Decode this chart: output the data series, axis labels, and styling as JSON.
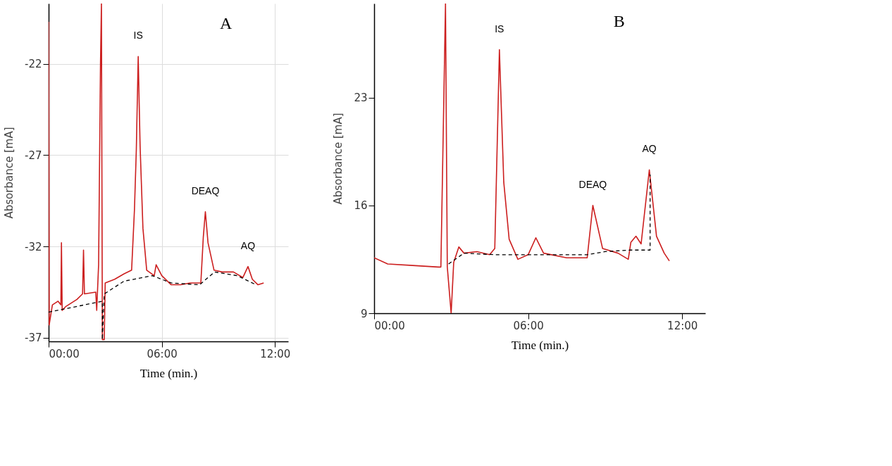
{
  "chart_data": [
    {
      "type": "line",
      "xlabel": "Time (min.)",
      "ylabel": "Absorbance [mA]",
      "xlim": [
        0,
        12.7
      ],
      "ylim": [
        -37.2,
        -18.7
      ],
      "xticks": [
        {
          "value": 0,
          "label": "00:00"
        },
        {
          "value": 6,
          "label": "06:00"
        },
        {
          "value": 12,
          "label": "12:00"
        }
      ],
      "yticks": [
        -37,
        -32,
        -27,
        -22
      ],
      "grid": true,
      "series": [
        {
          "color": "#cc1f1f",
          "line_style": "solid",
          "x": [
            0,
            0.03,
            0.2,
            0.5,
            0.65,
            0.68,
            0.72,
            0.9,
            1.5,
            1.8,
            1.85,
            1.9,
            2.5,
            2.55,
            2.65,
            2.75,
            2.8,
            2.85,
            2.95,
            3.0,
            3.5,
            4.0,
            4.4,
            4.55,
            4.65,
            4.75,
            4.85,
            5.0,
            5.2,
            5.6,
            5.7,
            6.0,
            6.5,
            7.0,
            7.5,
            8.07,
            8.2,
            8.31,
            8.45,
            8.77,
            9.2,
            9.8,
            10.3,
            10.57,
            10.8,
            11.1,
            11.4
          ],
          "values": [
            -19.7,
            -36.3,
            -35.2,
            -35.0,
            -35.2,
            -31.8,
            -35.5,
            -35.3,
            -34.9,
            -34.6,
            -32.2,
            -34.6,
            -34.5,
            -35.5,
            -33.0,
            -22.0,
            -18.7,
            -37.1,
            -37.1,
            -34.0,
            -33.8,
            -33.5,
            -33.3,
            -30.0,
            -26.7,
            -21.6,
            -26.5,
            -31.0,
            -33.3,
            -33.6,
            -33.0,
            -33.6,
            -34.1,
            -34.1,
            -34.0,
            -34.0,
            -31.5,
            -30.1,
            -31.8,
            -33.3,
            -33.4,
            -33.4,
            -33.7,
            -33.1,
            -33.8,
            -34.1,
            -34.0
          ]
        },
        {
          "color": "#000000",
          "line_style": "dashed",
          "x": [
            0,
            2.85,
            2.85,
            2.95,
            4.0,
            5.5,
            6.5,
            8.0,
            8.8,
            10.0,
            11.0
          ],
          "values": [
            -35.6,
            -35.0,
            -37.1,
            -34.6,
            -33.9,
            -33.6,
            -34.0,
            -34.1,
            -33.4,
            -33.6,
            -34.1
          ]
        }
      ],
      "annotations": [
        {
          "text": "IS",
          "x": 4.75,
          "y": -21.6
        },
        {
          "text": "DEAQ",
          "x": 8.31,
          "y": -30.1
        },
        {
          "text": "AQ",
          "x": 10.57,
          "y": -33.1
        },
        "A"
      ]
    },
    {
      "type": "line",
      "xlabel": "Time (min.)",
      "ylabel": "Absorbance [mA]",
      "xlim": [
        0,
        12.9
      ],
      "ylim": [
        9,
        29.1
      ],
      "xticks": [
        {
          "value": 0,
          "label": "00:00"
        },
        {
          "value": 6,
          "label": "06:00"
        },
        {
          "value": 12,
          "label": "12:00"
        }
      ],
      "yticks": [
        9,
        16,
        23
      ],
      "grid": false,
      "series": [
        {
          "color": "#cc1f1f",
          "line_style": "solid",
          "x": [
            0,
            0.53,
            1.5,
            2.5,
            2.6,
            2.78,
            2.85,
            3.0,
            3.1,
            3.3,
            3.5,
            4.0,
            4.5,
            4.7,
            4.88,
            5.05,
            5.26,
            5.6,
            6.0,
            6.3,
            6.6,
            7.5,
            8.3,
            8.52,
            8.9,
            9.5,
            9.9,
            10.0,
            10.2,
            10.4,
            10.72,
            11.0,
            11.3,
            11.5
          ],
          "values": [
            12.6,
            12.2,
            12.1,
            12.0,
            12.0,
            29.1,
            12.0,
            9.0,
            12.3,
            13.3,
            12.9,
            13.0,
            12.8,
            13.2,
            26.1,
            17.5,
            13.8,
            12.5,
            12.8,
            13.9,
            12.9,
            12.6,
            12.6,
            16.0,
            13.2,
            12.9,
            12.5,
            13.6,
            14.0,
            13.5,
            18.3,
            14.0,
            12.9,
            12.4
          ]
        },
        {
          "color": "#000000",
          "line_style": "dashed",
          "x": [
            2.9,
            3.5,
            4.7,
            5.5,
            8.3,
            9.0,
            10.0,
            10.75,
            10.75
          ],
          "values": [
            12.2,
            12.9,
            12.8,
            12.8,
            12.8,
            13.0,
            13.1,
            13.1,
            18.0
          ]
        }
      ],
      "annotations": [
        {
          "text": "IS",
          "x": 4.88,
          "y": 26.1
        },
        {
          "text": "DEAQ",
          "x": 8.52,
          "y": 16.0
        },
        {
          "text": "AQ",
          "x": 10.72,
          "y": 18.3
        },
        "B"
      ]
    }
  ]
}
